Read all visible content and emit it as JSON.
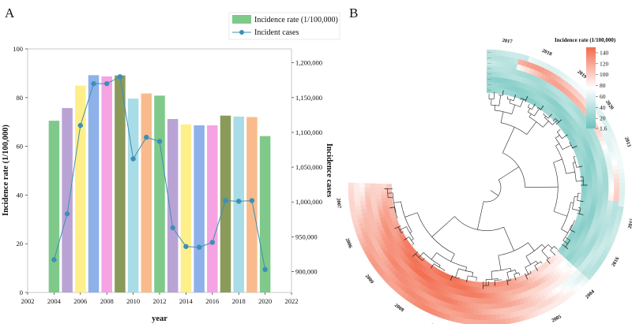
{
  "panels": {
    "a_label": "A",
    "b_label": "B"
  },
  "chart_data": [
    {
      "type": "bar",
      "title": "",
      "xlabel": "year",
      "ylabel": "Incidence rate (1/100,000)",
      "y2label": "Incidence cases",
      "xlim": [
        2002,
        2022
      ],
      "xticks": [
        "2002",
        "2004",
        "2006",
        "2008",
        "2010",
        "2012",
        "2014",
        "2016",
        "2018",
        "2020",
        "2022"
      ],
      "ylim": [
        0,
        100
      ],
      "yticks": [
        "0",
        "20",
        "40",
        "60",
        "80",
        "100"
      ],
      "y2lim": [
        870000,
        1220000
      ],
      "y2ticks": [
        "900,000",
        "950,000",
        "1,000,000",
        "1,050,000",
        "1,100,000",
        "1,150,000",
        "1,200,000"
      ],
      "legend": {
        "placement": "top-right",
        "bar_label": "Incidence rate (1/100,000)",
        "line_label": "Incident cases"
      },
      "years": [
        2004,
        2005,
        2006,
        2007,
        2008,
        2009,
        2010,
        2011,
        2012,
        2013,
        2014,
        2015,
        2016,
        2017,
        2018,
        2019,
        2020
      ],
      "series": [
        {
          "name": "Incidence rate (1/100,000)",
          "type": "bar",
          "values": [
            70.5,
            75.7,
            84.9,
            89.2,
            88.7,
            89.1,
            79.6,
            81.7,
            80.8,
            71.2,
            69.0,
            68.6,
            68.6,
            72.6,
            72.2,
            72.0,
            64.2
          ],
          "colors": [
            "#7fc98a",
            "#b9a3d4",
            "#ffef8a",
            "#8eb1ea",
            "#f5a3e3",
            "#8a9a5b",
            "#a8dce6",
            "#f9bb8c",
            "#7fc98a",
            "#b9a3d4",
            "#ffef8a",
            "#8eb1ea",
            "#f5a3e3",
            "#8a9a5b",
            "#a8dce6",
            "#f9bb8c",
            "#7fc98a"
          ]
        },
        {
          "name": "Incident cases",
          "type": "line",
          "color": "#3e8fb7",
          "values": [
            917000,
            983000,
            1110000,
            1170000,
            1170000,
            1180000,
            1062000,
            1093000,
            1087000,
            963000,
            936000,
            935000,
            942000,
            1002000,
            1001000,
            1002000,
            903000
          ]
        }
      ]
    },
    {
      "type": "heatmap",
      "layout": "circular with hierarchical clustering dendrogram",
      "colorbar": {
        "title": "Incidence rate (1/100,000)",
        "ticks": [
          "140",
          "120",
          "100",
          "80",
          "60",
          "40",
          "20",
          "1.6"
        ],
        "range": [
          1.6,
          150
        ],
        "low_color": "#6cc3bc",
        "mid_color": "#ffffff",
        "high_color": "#f26a4c"
      },
      "ring_years": [
        "2017",
        "2018",
        "2019",
        "2020",
        "2013",
        "2014",
        "2015",
        "2016",
        "2004",
        "2005",
        "2012",
        "2010",
        "2011",
        "2008",
        "2009",
        "2006",
        "2007"
      ]
    }
  ]
}
